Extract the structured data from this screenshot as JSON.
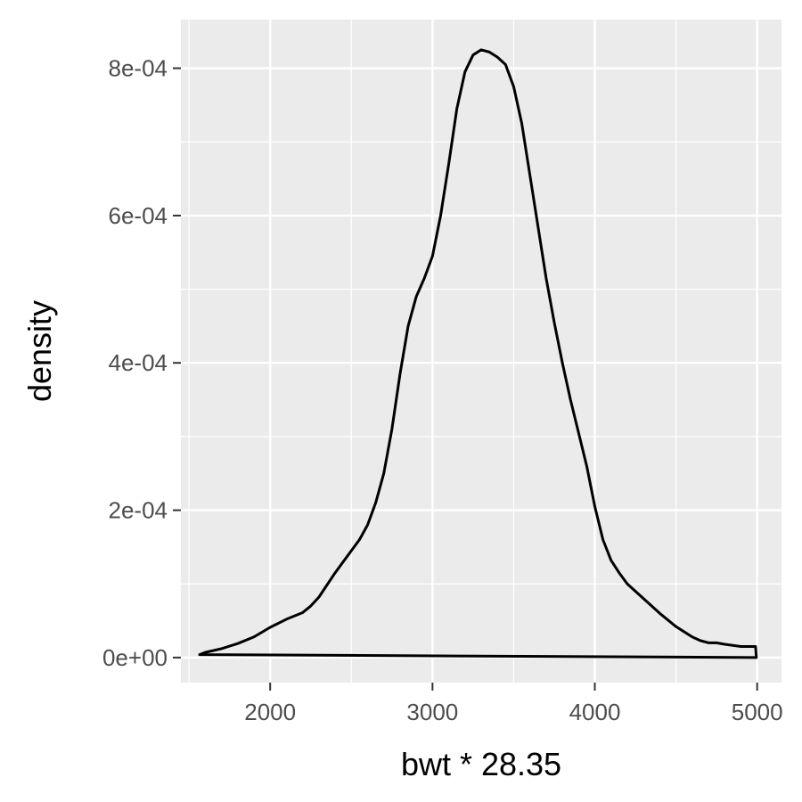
{
  "chart_data": {
    "type": "area",
    "xlabel": "bwt * 28.35",
    "ylabel": "density",
    "xlim": [
      1450,
      5150
    ],
    "ylim": [
      -3.4e-05,
      0.000866
    ],
    "x_ticks": [
      2000,
      3000,
      4000,
      5000
    ],
    "x_tick_labels": [
      "2000",
      "3000",
      "4000",
      "5000"
    ],
    "y_ticks": [
      0,
      0.0002,
      0.0004,
      0.0006,
      0.0008
    ],
    "y_tick_labels": [
      "0e+00",
      "2e-04",
      "4e-04",
      "6e-04",
      "8e-04"
    ],
    "grid": true,
    "panel_color": "#ebebeb",
    "grid_color": "#ffffff",
    "line_color": "#000000",
    "series": [
      {
        "x": [
          1565,
          1600,
          1700,
          1800,
          1900,
          2000,
          2100,
          2200,
          2250,
          2300,
          2400,
          2500,
          2550,
          2600,
          2650,
          2700,
          2750,
          2800,
          2850,
          2900,
          2950,
          3000,
          3050,
          3100,
          3150,
          3200,
          3250,
          3300,
          3350,
          3400,
          3450,
          3500,
          3550,
          3600,
          3650,
          3700,
          3750,
          3800,
          3850,
          3900,
          3950,
          4000,
          4050,
          4100,
          4150,
          4200,
          4250,
          4300,
          4400,
          4500,
          4600,
          4650,
          4700,
          4750,
          4800,
          4900,
          4990,
          4995
        ],
        "y": [
          4e-06,
          7e-06,
          1.2e-05,
          1.9e-05,
          2.8e-05,
          4.1e-05,
          5.2e-05,
          6.1e-05,
          7e-05,
          8.2e-05,
          0.000115,
          0.000145,
          0.00016,
          0.00018,
          0.00021,
          0.00025,
          0.00031,
          0.000385,
          0.00045,
          0.00049,
          0.000515,
          0.000545,
          0.0006,
          0.00067,
          0.000745,
          0.000795,
          0.000818,
          0.000825,
          0.000822,
          0.000815,
          0.000805,
          0.000775,
          0.000725,
          0.000655,
          0.000585,
          0.000515,
          0.000455,
          0.0004,
          0.00035,
          0.000305,
          0.00026,
          0.000205,
          0.00016,
          0.000132,
          0.000115,
          0.0001,
          9e-05,
          8e-05,
          6e-05,
          4.2e-05,
          2.8e-05,
          2.3e-05,
          2e-05,
          2e-05,
          1.8e-05,
          1.5e-05,
          1.5e-05,
          0
        ]
      }
    ]
  }
}
